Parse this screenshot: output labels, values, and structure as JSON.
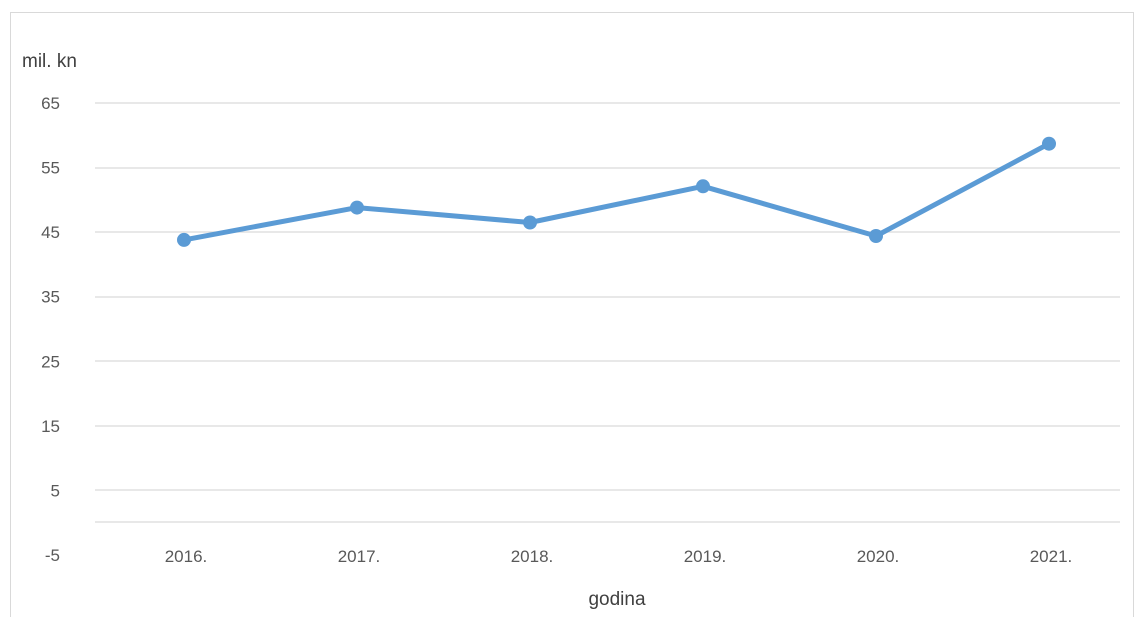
{
  "chart_data": {
    "type": "line",
    "title": "",
    "xlabel": "godina",
    "ylabel": "mil. kn",
    "categories": [
      "2016.",
      "2017.",
      "2018.",
      "2019.",
      "2020.",
      "2021."
    ],
    "y_ticks": [
      "65",
      "55",
      "45",
      "35",
      "25",
      "15",
      "5",
      "-5"
    ],
    "ylim": [
      -5,
      65
    ],
    "grid": true,
    "legend": "none",
    "series": [
      {
        "values": [
          43.8,
          48.8,
          46.5,
          52.1,
          44.4,
          58.7
        ],
        "color": "#5b9bd5"
      }
    ]
  }
}
